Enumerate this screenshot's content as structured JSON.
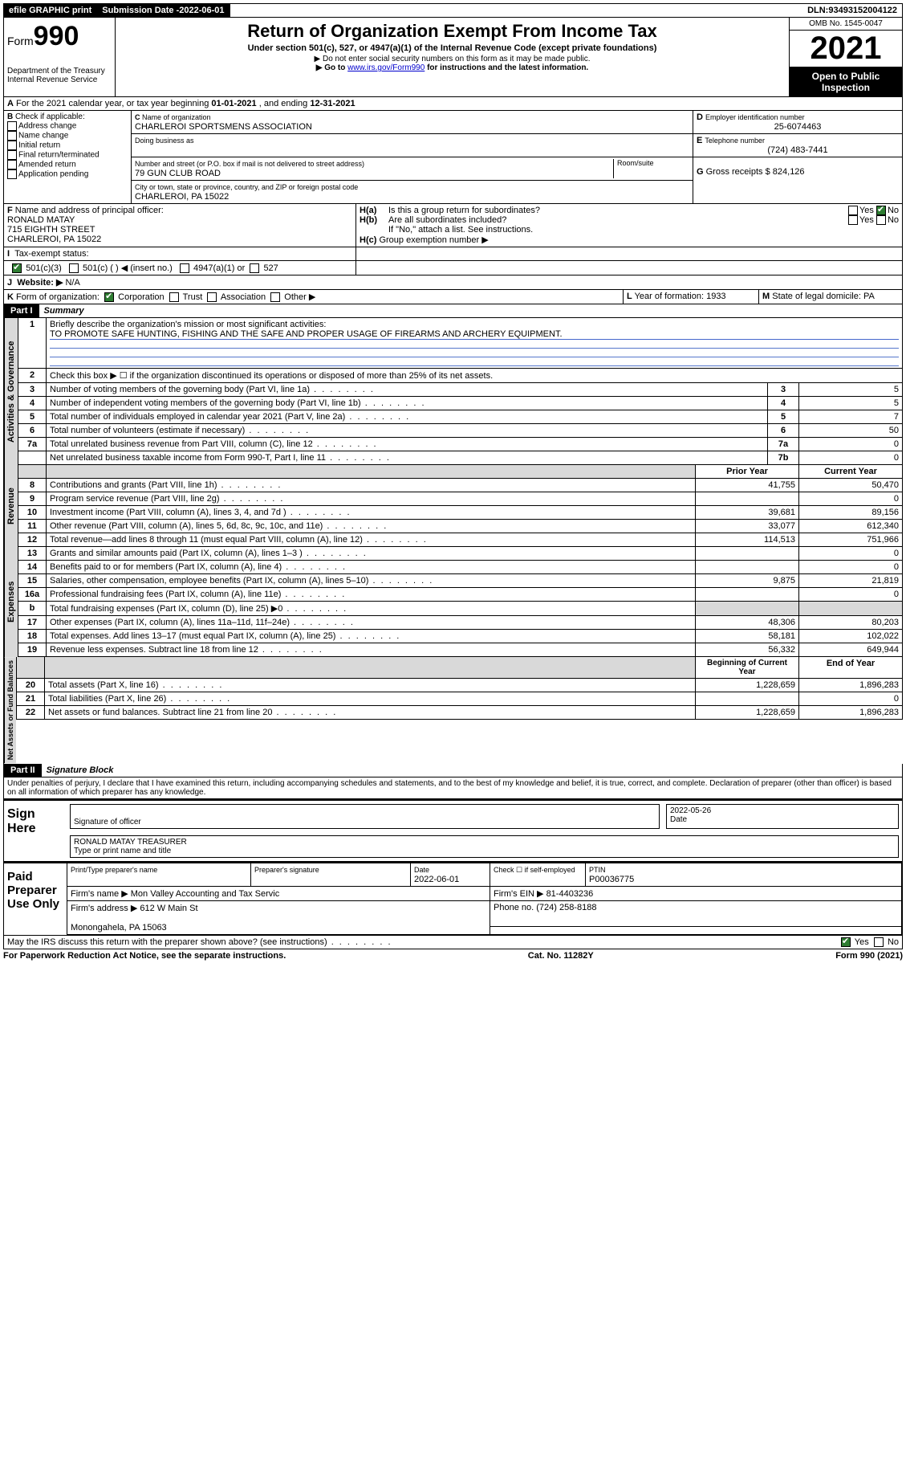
{
  "topbar": {
    "efile": "efile GRAPHIC print",
    "sub_label": "Submission Date - ",
    "sub_date": "2022-06-01",
    "dln_label": "DLN: ",
    "dln": "93493152004122"
  },
  "header": {
    "form_prefix": "Form",
    "form_num": "990",
    "dept": "Department of the Treasury",
    "irs": "Internal Revenue Service",
    "title": "Return of Organization Exempt From Income Tax",
    "sub1": "Under section 501(c), 527, or 4947(a)(1) of the Internal Revenue Code (except private foundations)",
    "sub2": "▶ Do not enter social security numbers on this form as it may be made public.",
    "sub3_pre": "▶ Go to ",
    "sub3_link": "www.irs.gov/Form990",
    "sub3_post": " for instructions and the latest information.",
    "omb": "OMB No. 1545-0047",
    "year": "2021",
    "inspection": "Open to Public Inspection"
  },
  "A": {
    "text_pre": "For the 2021 calendar year, or tax year beginning ",
    "begin": "01-01-2021",
    "mid": " , and ending ",
    "end": "12-31-2021"
  },
  "B": {
    "hdr": "Check if applicable:",
    "opts": [
      "Address change",
      "Name change",
      "Initial return",
      "Final return/terminated",
      "Amended return",
      "Application pending"
    ]
  },
  "C": {
    "name_label": "Name of organization",
    "name": "CHARLEROI SPORTSMENS ASSOCIATION",
    "dba_label": "Doing business as",
    "street_label": "Number and street (or P.O. box if mail is not delivered to street address)",
    "room_label": "Room/suite",
    "street": "79 GUN CLUB ROAD",
    "city_label": "City or town, state or province, country, and ZIP or foreign postal code",
    "city": "CHARLEROI, PA  15022"
  },
  "D": {
    "label": "Employer identification number",
    "val": "25-6074463"
  },
  "E": {
    "label": "Telephone number",
    "val": "(724) 483-7441"
  },
  "G": {
    "label": "Gross receipts $",
    "val": "824,126"
  },
  "F": {
    "label": "Name and address of principal officer:",
    "name": "RONALD MATAY",
    "addr1": "715 EIGHTH STREET",
    "addr2": "CHARLEROI, PA  15022"
  },
  "H": {
    "a": "Is this a group return for subordinates?",
    "b": "Are all subordinates included?",
    "note": "If \"No,\" attach a list. See instructions.",
    "c": "Group exemption number ▶"
  },
  "I": {
    "label": "Tax-exempt status:",
    "o1": "501(c)(3)",
    "o2": "501(c) (  ) ◀ (insert no.)",
    "o3": "4947(a)(1) or",
    "o4": "527"
  },
  "J": {
    "label": "Website: ▶",
    "val": "N/A"
  },
  "K": {
    "label": "Form of organization:",
    "o1": "Corporation",
    "o2": "Trust",
    "o3": "Association",
    "o4": "Other ▶"
  },
  "L": {
    "label": "Year of formation:",
    "val": "1933"
  },
  "M": {
    "label": "State of legal domicile:",
    "val": "PA"
  },
  "part1": {
    "hdr": "Part I",
    "title": "Summary",
    "q1": "Briefly describe the organization's mission or most significant activities:",
    "q1a": "TO PROMOTE SAFE HUNTING, FISHING AND THE SAFE AND PROPER USAGE OF FIREARMS AND ARCHERY EQUIPMENT.",
    "q2": "Check this box ▶ ☐  if the organization discontinued its operations or disposed of more than 25% of its net assets.",
    "rows_gov": [
      {
        "n": "3",
        "t": "Number of voting members of the governing body (Part VI, line 1a)",
        "b": "3",
        "v": "5"
      },
      {
        "n": "4",
        "t": "Number of independent voting members of the governing body (Part VI, line 1b)",
        "b": "4",
        "v": "5"
      },
      {
        "n": "5",
        "t": "Total number of individuals employed in calendar year 2021 (Part V, line 2a)",
        "b": "5",
        "v": "7"
      },
      {
        "n": "6",
        "t": "Total number of volunteers (estimate if necessary)",
        "b": "6",
        "v": "50"
      },
      {
        "n": "7a",
        "t": "Total unrelated business revenue from Part VIII, column (C), line 12",
        "b": "7a",
        "v": "0"
      },
      {
        "n": "",
        "t": "Net unrelated business taxable income from Form 990-T, Part I, line 11",
        "b": "7b",
        "v": "0"
      }
    ],
    "col_prior": "Prior Year",
    "col_curr": "Current Year",
    "rows_rev": [
      {
        "n": "8",
        "t": "Contributions and grants (Part VIII, line 1h)",
        "p": "41,755",
        "c": "50,470"
      },
      {
        "n": "9",
        "t": "Program service revenue (Part VIII, line 2g)",
        "p": "",
        "c": "0"
      },
      {
        "n": "10",
        "t": "Investment income (Part VIII, column (A), lines 3, 4, and 7d )",
        "p": "39,681",
        "c": "89,156"
      },
      {
        "n": "11",
        "t": "Other revenue (Part VIII, column (A), lines 5, 6d, 8c, 9c, 10c, and 11e)",
        "p": "33,077",
        "c": "612,340"
      },
      {
        "n": "12",
        "t": "Total revenue—add lines 8 through 11 (must equal Part VIII, column (A), line 12)",
        "p": "114,513",
        "c": "751,966"
      }
    ],
    "rows_exp": [
      {
        "n": "13",
        "t": "Grants and similar amounts paid (Part IX, column (A), lines 1–3 )",
        "p": "",
        "c": "0"
      },
      {
        "n": "14",
        "t": "Benefits paid to or for members (Part IX, column (A), line 4)",
        "p": "",
        "c": "0"
      },
      {
        "n": "15",
        "t": "Salaries, other compensation, employee benefits (Part IX, column (A), lines 5–10)",
        "p": "9,875",
        "c": "21,819"
      },
      {
        "n": "16a",
        "t": "Professional fundraising fees (Part IX, column (A), line 11e)",
        "p": "",
        "c": "0"
      },
      {
        "n": "b",
        "t": "Total fundraising expenses (Part IX, column (D), line 25) ▶0",
        "p": "shade",
        "c": "shade"
      },
      {
        "n": "17",
        "t": "Other expenses (Part IX, column (A), lines 11a–11d, 11f–24e)",
        "p": "48,306",
        "c": "80,203"
      },
      {
        "n": "18",
        "t": "Total expenses. Add lines 13–17 (must equal Part IX, column (A), line 25)",
        "p": "58,181",
        "c": "102,022"
      },
      {
        "n": "19",
        "t": "Revenue less expenses. Subtract line 18 from line 12",
        "p": "56,332",
        "c": "649,944"
      }
    ],
    "col_begin": "Beginning of Current Year",
    "col_end": "End of Year",
    "rows_net": [
      {
        "n": "20",
        "t": "Total assets (Part X, line 16)",
        "p": "1,228,659",
        "c": "1,896,283"
      },
      {
        "n": "21",
        "t": "Total liabilities (Part X, line 26)",
        "p": "",
        "c": "0"
      },
      {
        "n": "22",
        "t": "Net assets or fund balances. Subtract line 21 from line 20",
        "p": "1,228,659",
        "c": "1,896,283"
      }
    ],
    "tabs": {
      "gov": "Activities & Governance",
      "rev": "Revenue",
      "exp": "Expenses",
      "net": "Net Assets or Fund Balances"
    }
  },
  "part2": {
    "hdr": "Part II",
    "title": "Signature Block",
    "decl": "Under penalties of perjury, I declare that I have examined this return, including accompanying schedules and statements, and to the best of my knowledge and belief, it is true, correct, and complete. Declaration of preparer (other than officer) is based on all information of which preparer has any knowledge.",
    "sign_here": "Sign Here",
    "sig_officer": "Signature of officer",
    "sig_date": "Date",
    "sig_date_val": "2022-05-26",
    "sig_name": "RONALD MATAY TREASURER",
    "sig_name_label": "Type or print name and title",
    "paid": "Paid Preparer Use Only",
    "prep_name_label": "Print/Type preparer's name",
    "prep_sig_label": "Preparer's signature",
    "prep_date_label": "Date",
    "prep_date": "2022-06-01",
    "prep_check": "Check ☐ if self-employed",
    "ptin_label": "PTIN",
    "ptin": "P00036775",
    "firm_name_label": "Firm's name    ▶",
    "firm_name": "Mon Valley Accounting and Tax Servic",
    "firm_ein_label": "Firm's EIN ▶",
    "firm_ein": "81-4403236",
    "firm_addr_label": "Firm's address ▶",
    "firm_addr1": "612 W Main St",
    "firm_addr2": "Monongahela, PA  15063",
    "phone_label": "Phone no.",
    "phone": "(724) 258-8188",
    "discuss": "May the IRS discuss this return with the preparer shown above? (see instructions)"
  },
  "footer": {
    "left": "For Paperwork Reduction Act Notice, see the separate instructions.",
    "mid": "Cat. No. 11282Y",
    "right_pre": "Form ",
    "right_b": "990",
    "right_post": " (2021)"
  },
  "yn": {
    "yes": "Yes",
    "no": "No"
  }
}
